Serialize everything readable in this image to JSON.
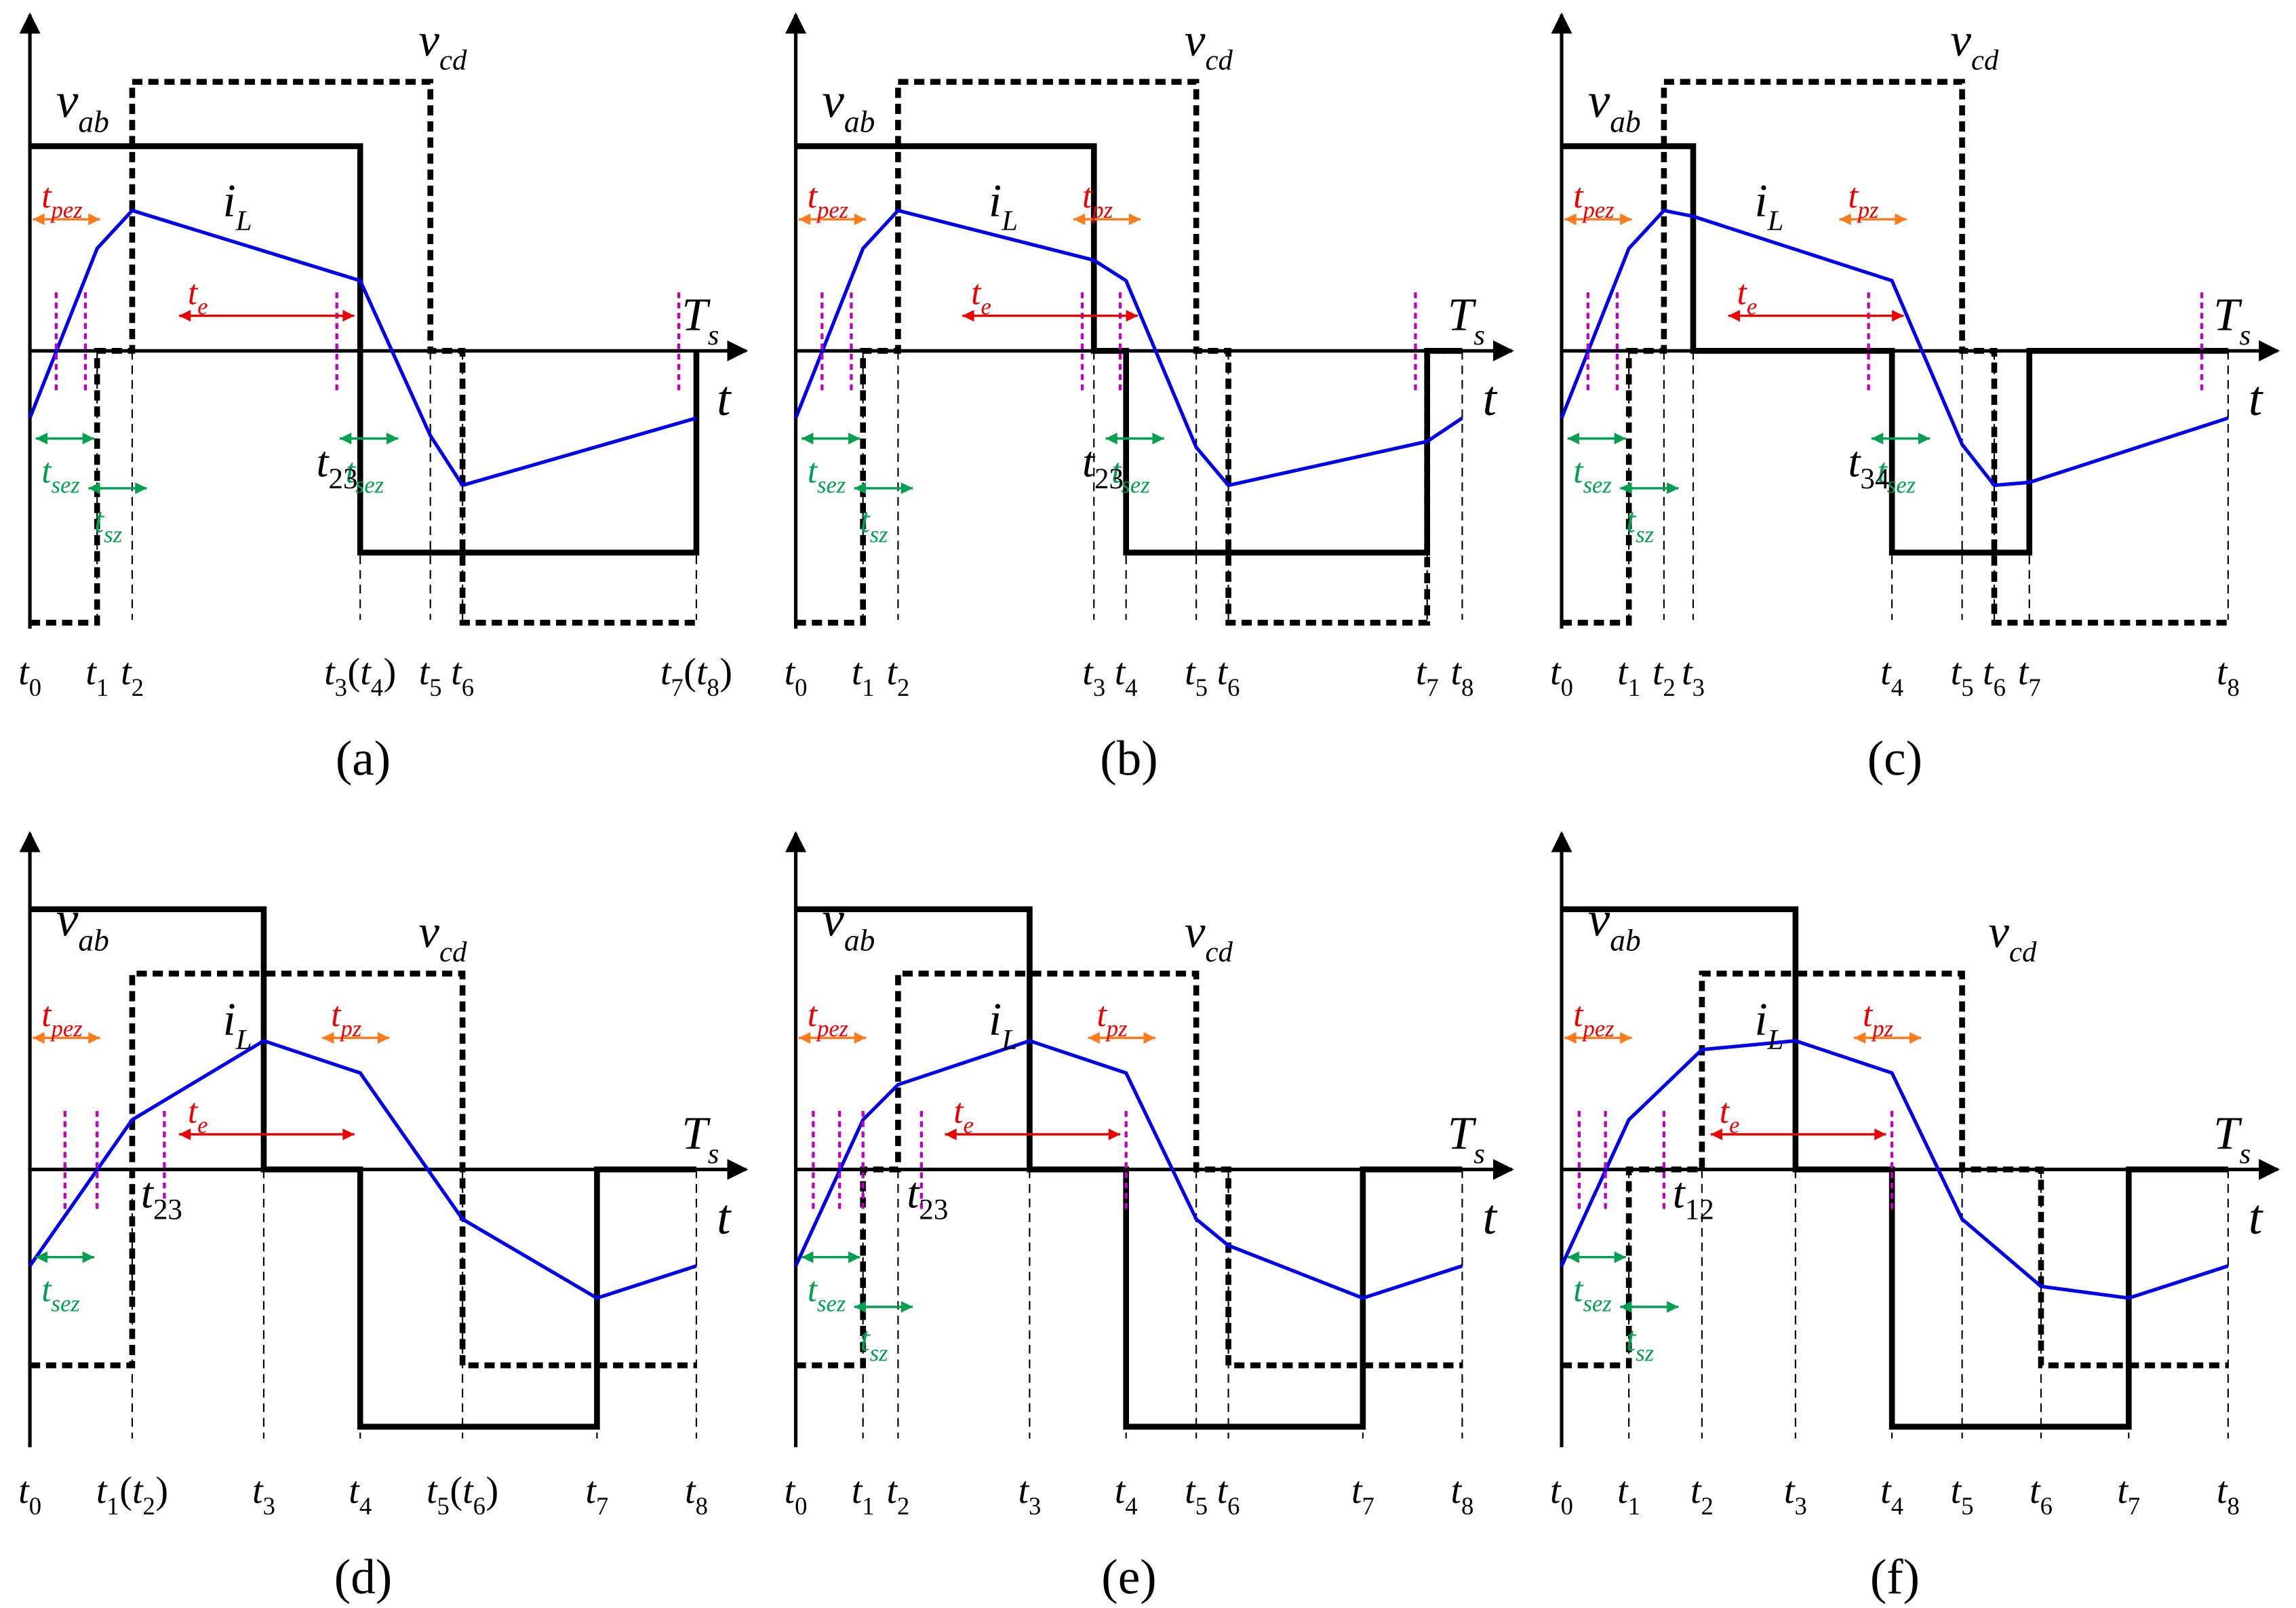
{
  "figure": {
    "description_free": true,
    "colors": {
      "axis": "#000000",
      "vab": "#000000",
      "vcd": "#000000",
      "current": "#0000ee",
      "effective": "#ee0000",
      "phase": "#ff7a1a",
      "zero": "#00a050",
      "marker": "#c000c0",
      "guide": "#000000"
    },
    "panels": [
      {
        "id": "a",
        "caption": "(a)",
        "vab_label": "v",
        "vab_sub": "ab",
        "vcd_label": "v",
        "vcd_sub": "cd",
        "il_label": "i",
        "il_sub": "L",
        "ts_label": "T",
        "ts_sub": "s",
        "t_label": "t",
        "interval_labels": [
          {
            "main": "t",
            "sub": "pez",
            "color": "effective"
          },
          {
            "main": "t",
            "sub": "e",
            "color": "effective"
          },
          {
            "main": "t",
            "sub": "sez",
            "color": "zero"
          },
          {
            "main": "t",
            "sub": "sz",
            "color": "zero"
          },
          {
            "main": "t",
            "sub": "sez",
            "color": "zero"
          }
        ],
        "point_label": {
          "main": "t",
          "sub": "23"
        },
        "time_labels": [
          "t0",
          "t1",
          "t2",
          "t3(t4)",
          "t5",
          "t6",
          "t7(t8)"
        ]
      },
      {
        "id": "b",
        "caption": "(b)",
        "vab_label": "v",
        "vab_sub": "ab",
        "vcd_label": "v",
        "vcd_sub": "cd",
        "il_label": "i",
        "il_sub": "L",
        "ts_label": "T",
        "ts_sub": "s",
        "t_label": "t",
        "interval_labels": [
          {
            "main": "t",
            "sub": "pez",
            "color": "effective"
          },
          {
            "main": "t",
            "sub": "pz",
            "color": "effective"
          },
          {
            "main": "t",
            "sub": "e",
            "color": "effective"
          },
          {
            "main": "t",
            "sub": "sez",
            "color": "zero"
          },
          {
            "main": "t",
            "sub": "sz",
            "color": "zero"
          },
          {
            "main": "t",
            "sub": "sez",
            "color": "zero"
          }
        ],
        "point_label": {
          "main": "t",
          "sub": "23"
        },
        "time_labels": [
          "t0",
          "t1",
          "t2",
          "t3",
          "t4",
          "t5",
          "t6",
          "t7",
          "t8"
        ]
      },
      {
        "id": "c",
        "caption": "(c)",
        "vab_label": "v",
        "vab_sub": "ab",
        "vcd_label": "v",
        "vcd_sub": "cd",
        "il_label": "i",
        "il_sub": "L",
        "ts_label": "T",
        "ts_sub": "s",
        "t_label": "t",
        "interval_labels": [
          {
            "main": "t",
            "sub": "pez",
            "color": "effective"
          },
          {
            "main": "t",
            "sub": "pz",
            "color": "effective"
          },
          {
            "main": "t",
            "sub": "e",
            "color": "effective"
          },
          {
            "main": "t",
            "sub": "sez",
            "color": "zero"
          },
          {
            "main": "t",
            "sub": "sz",
            "color": "zero"
          },
          {
            "main": "t",
            "sub": "sez",
            "color": "zero"
          }
        ],
        "point_label": {
          "main": "t",
          "sub": "34"
        },
        "time_labels": [
          "t0",
          "t1",
          "t2",
          "t3",
          "t4",
          "t5",
          "t6",
          "t7",
          "t8"
        ]
      },
      {
        "id": "d",
        "caption": "(d)",
        "vab_label": "v",
        "vab_sub": "ab",
        "vcd_label": "v",
        "vcd_sub": "cd",
        "il_label": "i",
        "il_sub": "L",
        "ts_label": "T",
        "ts_sub": "s",
        "t_label": "t",
        "interval_labels": [
          {
            "main": "t",
            "sub": "pez",
            "color": "effective"
          },
          {
            "main": "t",
            "sub": "e",
            "color": "effective"
          },
          {
            "main": "t",
            "sub": "pz",
            "color": "effective"
          },
          {
            "main": "t",
            "sub": "sez",
            "color": "zero"
          }
        ],
        "point_label": {
          "main": "t",
          "sub": "23"
        },
        "time_labels": [
          "t0",
          "t1(t2)",
          "t3",
          "t4",
          "t5(t6)",
          "t7",
          "t8"
        ]
      },
      {
        "id": "e",
        "caption": "(e)",
        "vab_label": "v",
        "vab_sub": "ab",
        "vcd_label": "v",
        "vcd_sub": "cd",
        "il_label": "i",
        "il_sub": "L",
        "ts_label": "T",
        "ts_sub": "s",
        "t_label": "t",
        "interval_labels": [
          {
            "main": "t",
            "sub": "pez",
            "color": "effective"
          },
          {
            "main": "t",
            "sub": "e",
            "color": "effective"
          },
          {
            "main": "t",
            "sub": "pz",
            "color": "effective"
          },
          {
            "main": "t",
            "sub": "sez",
            "color": "zero"
          },
          {
            "main": "t",
            "sub": "sz",
            "color": "zero"
          }
        ],
        "point_label": {
          "main": "t",
          "sub": "23"
        },
        "time_labels": [
          "t0",
          "t1",
          "t2",
          "t3",
          "t4",
          "t5",
          "t6",
          "t7",
          "t8"
        ]
      },
      {
        "id": "f",
        "caption": "(f)",
        "vab_label": "v",
        "vab_sub": "ab",
        "vcd_label": "v",
        "vcd_sub": "cd",
        "il_label": "i",
        "il_sub": "L",
        "ts_label": "T",
        "ts_sub": "s",
        "t_label": "t",
        "interval_labels": [
          {
            "main": "t",
            "sub": "pez",
            "color": "effective"
          },
          {
            "main": "t",
            "sub": "e",
            "color": "effective"
          },
          {
            "main": "t",
            "sub": "pz",
            "color": "effective"
          },
          {
            "main": "t",
            "sub": "sez",
            "color": "zero"
          },
          {
            "main": "t",
            "sub": "sz",
            "color": "zero"
          }
        ],
        "point_label": {
          "main": "t",
          "sub": "12"
        },
        "time_labels": [
          "t0",
          "t1",
          "t2",
          "t3",
          "t4",
          "t5",
          "t6",
          "t7",
          "t8"
        ]
      }
    ]
  }
}
